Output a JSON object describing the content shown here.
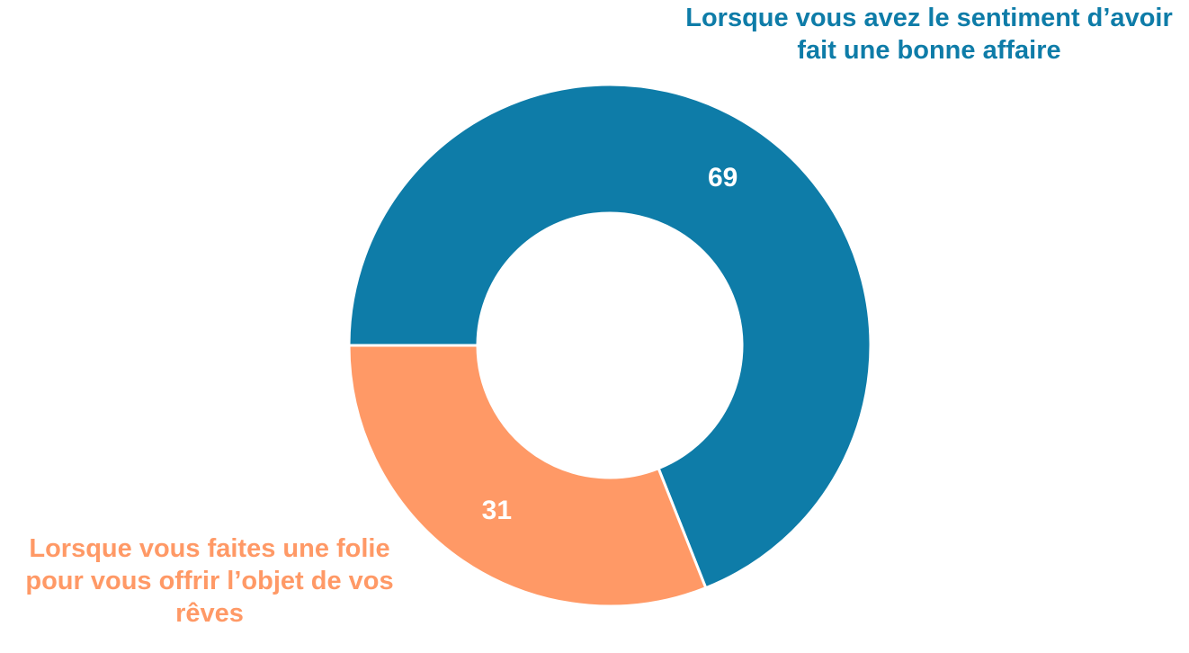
{
  "chart_data": {
    "type": "donut",
    "categories": [
      "Lorsque vous avez le sentiment d’avoir fait une bonne affaire",
      "Lorsque vous faites une folie pour vous offrir l’objet de vos rêves"
    ],
    "values": [
      69,
      31
    ],
    "colors": [
      "#0e7ca8",
      "#ff9966"
    ]
  }
}
